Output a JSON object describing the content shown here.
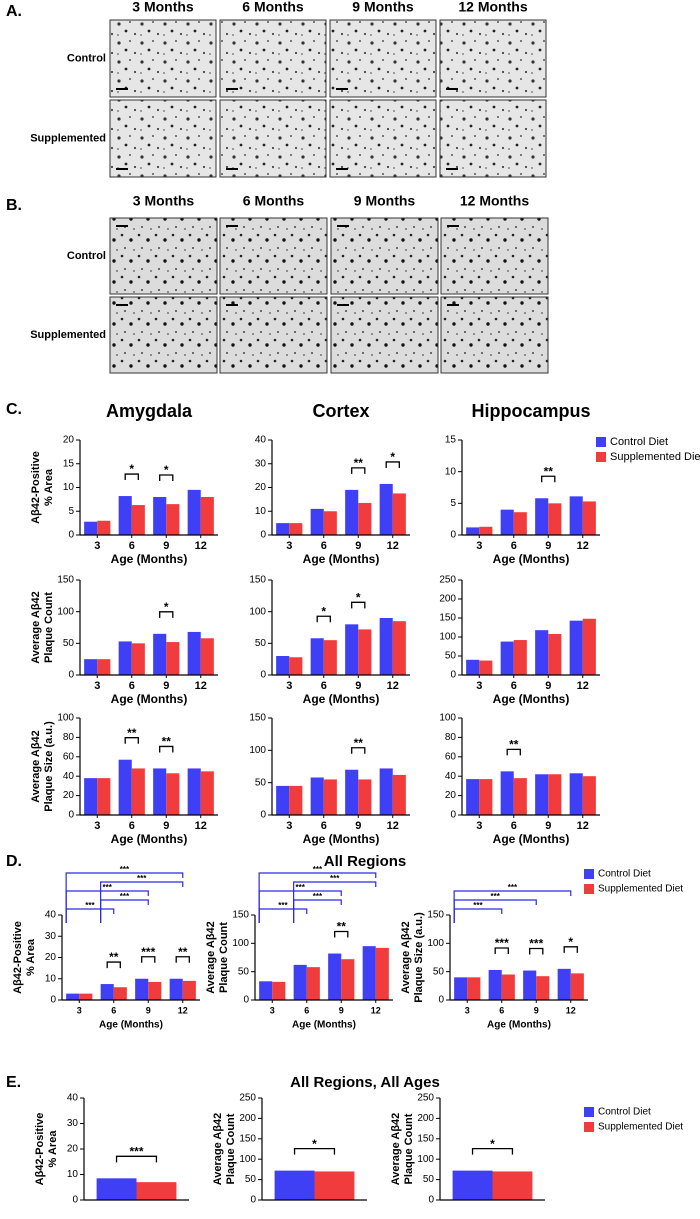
{
  "panel_a": {
    "label": "A.",
    "columns": [
      "3 Months",
      "6 Months",
      "9 Months",
      "12 Months"
    ],
    "rows": [
      "Control",
      "Supplemented"
    ]
  },
  "panel_b": {
    "label": "B.",
    "columns": [
      "3 Months",
      "6 Months",
      "9 Months",
      "12 Months"
    ],
    "rows": [
      "Control",
      "Supplemented"
    ]
  },
  "panel_labels": {
    "c": "C.",
    "d": "D.",
    "e": "E."
  },
  "chart_data": [
    {
      "type": "bar",
      "title": "Amygdala",
      "ylabel": [
        "Aβ42-Positive",
        "% Area"
      ],
      "xlabel": "Age (Months)",
      "categories": [
        "3",
        "6",
        "9",
        "12"
      ],
      "series": [
        {
          "color": "#3f3ff5",
          "values": [
            2.8,
            8.2,
            8.0,
            9.5
          ]
        },
        {
          "color": "#f03c3c",
          "values": [
            3.0,
            6.3,
            6.5,
            8.0
          ]
        }
      ],
      "ylim": [
        0,
        20
      ],
      "yticks": [
        0,
        5,
        10,
        15,
        20
      ],
      "annotations": [
        {
          "category": "6",
          "label": "*"
        },
        {
          "category": "9",
          "label": "*"
        }
      ]
    },
    {
      "type": "bar",
      "title": "Cortex",
      "xlabel": "Age (Months)",
      "categories": [
        "3",
        "6",
        "9",
        "12"
      ],
      "series": [
        {
          "color": "#3f3ff5",
          "values": [
            5,
            11,
            19,
            21.5
          ]
        },
        {
          "color": "#f03c3c",
          "values": [
            5,
            10,
            13.5,
            17.5
          ]
        }
      ],
      "ylim": [
        0,
        40
      ],
      "yticks": [
        0,
        10,
        20,
        30,
        40
      ],
      "annotations": [
        {
          "category": "9",
          "label": "**"
        },
        {
          "category": "12",
          "label": "*"
        }
      ]
    },
    {
      "type": "bar",
      "title": "Hippocampus",
      "xlabel": "Age (Months)",
      "categories": [
        "3",
        "6",
        "9",
        "12"
      ],
      "series": [
        {
          "name": "Control Diet",
          "color": "#3f3ff5",
          "values": [
            1.2,
            4.0,
            5.8,
            6.1
          ]
        },
        {
          "name": "Supplemented Diet",
          "color": "#f03c3c",
          "values": [
            1.3,
            3.6,
            5.0,
            5.3
          ]
        }
      ],
      "ylim": [
        0,
        15
      ],
      "yticks": [
        0,
        5,
        10,
        15
      ],
      "annotations": [
        {
          "category": "9",
          "label": "**"
        }
      ],
      "legend": "right"
    },
    {
      "type": "bar",
      "ylabel": [
        "Average Aβ42",
        "Plaque Count"
      ],
      "xlabel": "Age (Months)",
      "categories": [
        "3",
        "6",
        "9",
        "12"
      ],
      "series": [
        {
          "color": "#3f3ff5",
          "values": [
            25,
            53,
            65,
            68
          ]
        },
        {
          "color": "#f03c3c",
          "values": [
            25,
            50,
            52,
            58
          ]
        }
      ],
      "ylim": [
        0,
        150
      ],
      "yticks": [
        0,
        50,
        100,
        150
      ],
      "annotations": [
        {
          "category": "9",
          "label": "*"
        }
      ]
    },
    {
      "type": "bar",
      "xlabel": "Age (Months)",
      "categories": [
        "3",
        "6",
        "9",
        "12"
      ],
      "series": [
        {
          "color": "#3f3ff5",
          "values": [
            30,
            58,
            80,
            90
          ]
        },
        {
          "color": "#f03c3c",
          "values": [
            28,
            55,
            72,
            85
          ]
        }
      ],
      "ylim": [
        0,
        150
      ],
      "yticks": [
        0,
        50,
        100,
        150
      ],
      "annotations": [
        {
          "category": "6",
          "label": "*"
        },
        {
          "category": "9",
          "label": "*"
        }
      ]
    },
    {
      "type": "bar",
      "xlabel": "Age (Months)",
      "categories": [
        "3",
        "6",
        "9",
        "12"
      ],
      "series": [
        {
          "color": "#3f3ff5",
          "values": [
            40,
            88,
            118,
            143
          ]
        },
        {
          "color": "#f03c3c",
          "values": [
            38,
            92,
            108,
            148
          ]
        }
      ],
      "ylim": [
        0,
        250
      ],
      "yticks": [
        0,
        50,
        100,
        150,
        200,
        250
      ]
    },
    {
      "type": "bar",
      "ylabel": [
        "Average Aβ42",
        "Plaque Size (a.u.)"
      ],
      "xlabel": "Age (Months)",
      "categories": [
        "3",
        "6",
        "9",
        "12"
      ],
      "series": [
        {
          "color": "#3f3ff5",
          "values": [
            38,
            57,
            48,
            48
          ]
        },
        {
          "color": "#f03c3c",
          "values": [
            38,
            48,
            43,
            45
          ]
        }
      ],
      "ylim": [
        0,
        100
      ],
      "yticks": [
        0,
        20,
        40,
        60,
        80,
        100
      ],
      "annotations": [
        {
          "category": "6",
          "label": "**"
        },
        {
          "category": "9",
          "label": "**"
        }
      ]
    },
    {
      "type": "bar",
      "xlabel": "Age (Months)",
      "categories": [
        "3",
        "6",
        "9",
        "12"
      ],
      "series": [
        {
          "color": "#3f3ff5",
          "values": [
            45,
            58,
            70,
            72
          ]
        },
        {
          "color": "#f03c3c",
          "values": [
            45,
            55,
            55,
            62
          ]
        }
      ],
      "ylim": [
        0,
        150
      ],
      "yticks": [
        0,
        50,
        100,
        150
      ],
      "annotations": [
        {
          "category": "9",
          "label": "**"
        }
      ]
    },
    {
      "type": "bar",
      "xlabel": "Age (Months)",
      "categories": [
        "3",
        "6",
        "9",
        "12"
      ],
      "series": [
        {
          "color": "#3f3ff5",
          "values": [
            37,
            45,
            42,
            43
          ]
        },
        {
          "color": "#f03c3c",
          "values": [
            37,
            38,
            42,
            40
          ]
        }
      ],
      "ylim": [
        0,
        100
      ],
      "yticks": [
        0,
        20,
        40,
        60,
        80,
        100
      ],
      "annotations": [
        {
          "category": "6",
          "label": "**"
        }
      ]
    },
    {
      "type": "bar",
      "ylabel": [
        "Aβ42-Positive",
        "% Area"
      ],
      "xlabel": "Age (Months)",
      "categories": [
        "3",
        "6",
        "9",
        "12"
      ],
      "series": [
        {
          "color": "#3f3ff5",
          "values": [
            3,
            7.5,
            10,
            10
          ]
        },
        {
          "color": "#f03c3c",
          "values": [
            3,
            6,
            8.5,
            9
          ]
        }
      ],
      "ylim": [
        0,
        40
      ],
      "yticks": [
        0,
        10,
        20,
        30,
        40
      ],
      "annotations": [
        {
          "category": "6",
          "label": "**"
        },
        {
          "category": "9",
          "label": "***"
        },
        {
          "category": "12",
          "label": "**"
        }
      ],
      "comparisons": [
        {
          "from": "3",
          "to": "12",
          "label": "***"
        },
        {
          "from": "6",
          "to": "12",
          "label": "***"
        },
        {
          "from": "3",
          "to": "9",
          "label": "***"
        },
        {
          "from": "6",
          "to": "9",
          "label": "***"
        },
        {
          "from": "3",
          "to": "6",
          "label": "***"
        }
      ]
    },
    {
      "type": "bar",
      "title": "All Regions",
      "ylabel": [
        "Average Aβ42",
        "Plaque Count"
      ],
      "xlabel": "Age (Months)",
      "categories": [
        "3",
        "6",
        "9",
        "12"
      ],
      "series": [
        {
          "color": "#3f3ff5",
          "values": [
            33,
            62,
            82,
            95
          ]
        },
        {
          "color": "#f03c3c",
          "values": [
            32,
            58,
            72,
            92
          ]
        }
      ],
      "ylim": [
        0,
        150
      ],
      "yticks": [
        0,
        50,
        100,
        150
      ],
      "annotations": [
        {
          "category": "9",
          "label": "**"
        }
      ],
      "comparisons": [
        {
          "from": "3",
          "to": "12",
          "label": "***"
        },
        {
          "from": "6",
          "to": "12",
          "label": "***"
        },
        {
          "from": "3",
          "to": "9",
          "label": "***"
        },
        {
          "from": "6",
          "to": "9",
          "label": "***"
        },
        {
          "from": "3",
          "to": "6",
          "label": "***"
        }
      ]
    },
    {
      "type": "bar",
      "ylabel": [
        "Average Aβ42",
        "Plaque Size (a.u.)"
      ],
      "xlabel": "Age (Months)",
      "categories": [
        "3",
        "6",
        "9",
        "12"
      ],
      "series": [
        {
          "name": "Control Diet",
          "color": "#3f3ff5",
          "values": [
            40,
            53,
            52,
            55
          ]
        },
        {
          "name": "Supplemented Diet",
          "color": "#f03c3c",
          "values": [
            40,
            45,
            42,
            47
          ]
        }
      ],
      "ylim": [
        0,
        150
      ],
      "yticks": [
        0,
        50,
        100,
        150
      ],
      "annotations": [
        {
          "category": "6",
          "label": "***"
        },
        {
          "category": "9",
          "label": "***"
        },
        {
          "category": "12",
          "label": "*"
        }
      ],
      "comparisons": [
        {
          "from": "3",
          "to": "12",
          "label": "***"
        },
        {
          "from": "3",
          "to": "9",
          "label": "***"
        },
        {
          "from": "3",
          "to": "6",
          "label": "***"
        }
      ],
      "legend": "right"
    },
    {
      "type": "bar",
      "ylabel": [
        "Aβ42-Positive",
        "% Area"
      ],
      "series": [
        {
          "color": "#3f3ff5",
          "values": [
            8.5
          ]
        },
        {
          "color": "#f03c3c",
          "values": [
            7
          ]
        }
      ],
      "ylim": [
        0,
        40
      ],
      "yticks": [
        0,
        10,
        20,
        30,
        40
      ],
      "annotations": [
        {
          "label": "***"
        }
      ]
    },
    {
      "type": "bar",
      "title": "All Regions, All Ages",
      "ylabel": [
        "Average Aβ42",
        "Plaque Count"
      ],
      "series": [
        {
          "color": "#3f3ff5",
          "values": [
            72
          ]
        },
        {
          "color": "#f03c3c",
          "values": [
            70
          ]
        }
      ],
      "ylim": [
        0,
        250
      ],
      "yticks": [
        0,
        50,
        100,
        150,
        200,
        250
      ],
      "annotations": [
        {
          "label": "*"
        }
      ]
    },
    {
      "type": "bar",
      "ylabel": [
        "Average Aβ42",
        "Plaque Count"
      ],
      "series": [
        {
          "name": "Control Diet",
          "color": "#3f3ff5",
          "values": [
            72
          ]
        },
        {
          "name": "Supplemented Diet",
          "color": "#f03c3c",
          "values": [
            70
          ]
        }
      ],
      "ylim": [
        0,
        250
      ],
      "yticks": [
        0,
        50,
        100,
        150,
        200,
        250
      ],
      "annotations": [
        {
          "label": "*"
        }
      ],
      "legend": "right"
    }
  ]
}
